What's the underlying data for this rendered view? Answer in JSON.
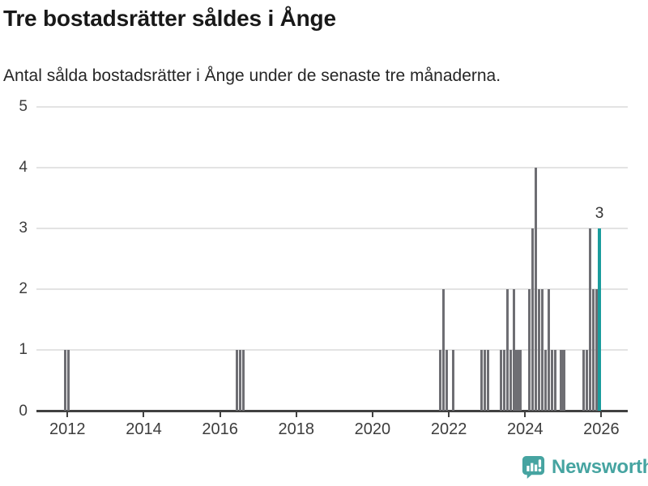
{
  "chart_data": {
    "type": "bar",
    "title": "Tre bostadsrätter såldes i Ånge",
    "subtitle": "Antal sålda bostadsrätter i Ånge under de senaste tre månaderna.",
    "xlabel": "",
    "ylabel": "",
    "ylim": [
      0,
      5
    ],
    "y_ticks": [
      0,
      1,
      2,
      3,
      4,
      5
    ],
    "x_tick_years": [
      2012,
      2014,
      2016,
      2018,
      2020,
      2022,
      2024,
      2026
    ],
    "x_unit": "month",
    "grid": true,
    "legend": "none",
    "highlight_label": "3",
    "colors": {
      "bar": "#6e6e73",
      "highlight": "#1a9c9d",
      "grid": "#e3e3e3",
      "axis": "#414141",
      "tick_text": "#3d3d3d",
      "title_text": "#191919",
      "brand": "#46a4a1"
    },
    "points": [
      {
        "date": "2011-12",
        "value": 1
      },
      {
        "date": "2012-01",
        "value": 1
      },
      {
        "date": "2016-06",
        "value": 1
      },
      {
        "date": "2016-07",
        "value": 1
      },
      {
        "date": "2016-08",
        "value": 1
      },
      {
        "date": "2021-10",
        "value": 1
      },
      {
        "date": "2021-11",
        "value": 2
      },
      {
        "date": "2021-12",
        "value": 1
      },
      {
        "date": "2022-02",
        "value": 1
      },
      {
        "date": "2022-11",
        "value": 1
      },
      {
        "date": "2022-12",
        "value": 1
      },
      {
        "date": "2023-01",
        "value": 1
      },
      {
        "date": "2023-05",
        "value": 1
      },
      {
        "date": "2023-06",
        "value": 1
      },
      {
        "date": "2023-07",
        "value": 2
      },
      {
        "date": "2023-08",
        "value": 1
      },
      {
        "date": "2023-09",
        "value": 2
      },
      {
        "date": "2023-10",
        "value": 1
      },
      {
        "date": "2023-11",
        "value": 1
      },
      {
        "date": "2024-02",
        "value": 2
      },
      {
        "date": "2024-03",
        "value": 3
      },
      {
        "date": "2024-04",
        "value": 4
      },
      {
        "date": "2024-05",
        "value": 2
      },
      {
        "date": "2024-06",
        "value": 2
      },
      {
        "date": "2024-07",
        "value": 1
      },
      {
        "date": "2024-08",
        "value": 2
      },
      {
        "date": "2024-09",
        "value": 1
      },
      {
        "date": "2024-10",
        "value": 1
      },
      {
        "date": "2024-12",
        "value": 1
      },
      {
        "date": "2025-01",
        "value": 1
      },
      {
        "date": "2025-07",
        "value": 1
      },
      {
        "date": "2025-08",
        "value": 1
      },
      {
        "date": "2025-09",
        "value": 3
      },
      {
        "date": "2025-10",
        "value": 2
      },
      {
        "date": "2025-11",
        "value": 2
      },
      {
        "date": "2025-12",
        "value": 3,
        "highlight": true
      }
    ]
  },
  "footer": {
    "brand": "Newsworthy"
  }
}
